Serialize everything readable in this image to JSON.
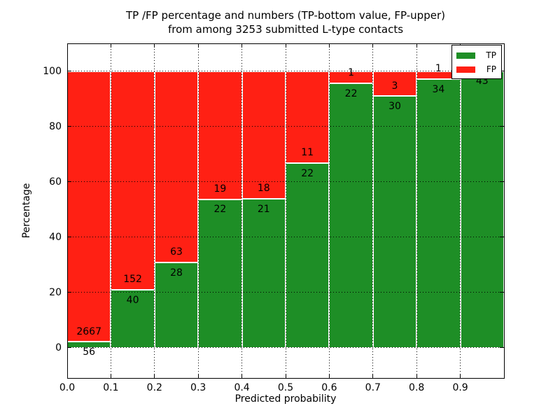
{
  "title": {
    "line1": "TP /FP percentage and numbers (TP-bottom value, FP-upper)",
    "line2": "from among 3253 submitted L-type contacts"
  },
  "axes": {
    "xlabel": "Predicted probability",
    "ylabel": "Percentage"
  },
  "legend": {
    "position": "upper right",
    "entries": [
      {
        "label": "TP",
        "color": "#1e8e26"
      },
      {
        "label": "FP",
        "color": "#ff2014"
      }
    ]
  },
  "colors": {
    "tp": "#1e8e26",
    "fp": "#ff2014",
    "background": "#ffffff",
    "grid": "#000000",
    "bar_edge": "#ffffff"
  },
  "chart_data": {
    "type": "bar",
    "subtype": "stacked-percentage",
    "title": "TP /FP percentage and numbers (TP-bottom value, FP-upper) from among 3253 submitted L-type contacts",
    "xlabel": "Predicted probability",
    "ylabel": "Percentage",
    "total_contacts": 3253,
    "xlim": [
      0.0,
      1.0
    ],
    "ylim": [
      -11,
      110
    ],
    "grid": true,
    "legend_position": "upper right",
    "x_tick_values": [
      0.0,
      0.1,
      0.2,
      0.3,
      0.4,
      0.5,
      0.6,
      0.7,
      0.8,
      0.9
    ],
    "x_tick_labels": [
      "0.0",
      "0.1",
      "0.2",
      "0.3",
      "0.4",
      "0.5",
      "0.6",
      "0.7",
      "0.8",
      "0.9"
    ],
    "y_tick_values": [
      0,
      20,
      40,
      60,
      80,
      100
    ],
    "y_tick_labels": [
      "0",
      "20",
      "40",
      "60",
      "80",
      "100"
    ],
    "series": [
      {
        "name": "TP",
        "color": "#1e8e26"
      },
      {
        "name": "FP",
        "color": "#ff2014"
      }
    ],
    "bins": [
      {
        "x_start": 0.0,
        "x_end": 0.1,
        "tp": 56,
        "fp": 2667
      },
      {
        "x_start": 0.1,
        "x_end": 0.2,
        "tp": 40,
        "fp": 152
      },
      {
        "x_start": 0.2,
        "x_end": 0.3,
        "tp": 28,
        "fp": 63
      },
      {
        "x_start": 0.3,
        "x_end": 0.4,
        "tp": 22,
        "fp": 19
      },
      {
        "x_start": 0.4,
        "x_end": 0.5,
        "tp": 21,
        "fp": 18
      },
      {
        "x_start": 0.5,
        "x_end": 0.6,
        "tp": 22,
        "fp": 11
      },
      {
        "x_start": 0.6,
        "x_end": 0.7,
        "tp": 22,
        "fp": 1
      },
      {
        "x_start": 0.7,
        "x_end": 0.8,
        "tp": 30,
        "fp": 3
      },
      {
        "x_start": 0.8,
        "x_end": 0.9,
        "tp": 34,
        "fp": 1
      },
      {
        "x_start": 0.9,
        "x_end": 1.0,
        "tp": 43,
        "fp": 0
      }
    ]
  }
}
